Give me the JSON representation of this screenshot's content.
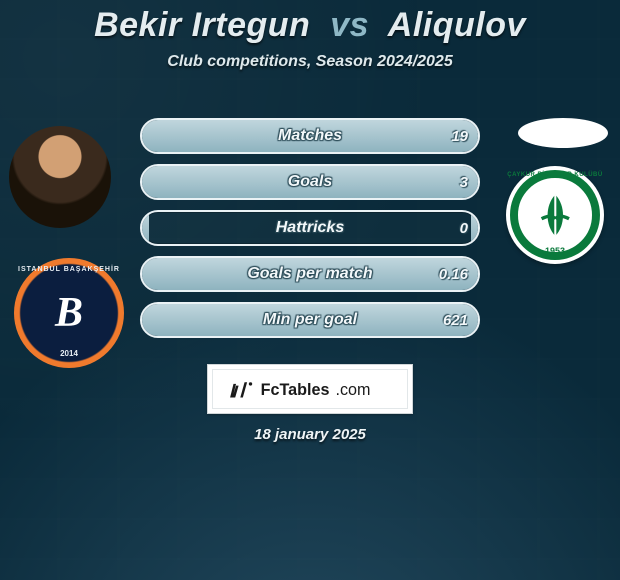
{
  "title": {
    "player1": "Bekir Irtegun",
    "vs": "vs",
    "player2": "Aliqulov"
  },
  "subtitle": "Club competitions, Season 2024/2025",
  "stats": [
    {
      "label": "Matches",
      "left_value": "",
      "right_value": "19",
      "left_fill_pct": 2,
      "right_fill_pct": 98
    },
    {
      "label": "Goals",
      "left_value": "",
      "right_value": "3",
      "left_fill_pct": 2,
      "right_fill_pct": 98
    },
    {
      "label": "Hattricks",
      "left_value": "",
      "right_value": "0",
      "left_fill_pct": 2,
      "right_fill_pct": 2
    },
    {
      "label": "Goals per match",
      "left_value": "",
      "right_value": "0.16",
      "left_fill_pct": 2,
      "right_fill_pct": 98
    },
    {
      "label": "Min per goal",
      "left_value": "",
      "right_value": "621",
      "left_fill_pct": 2,
      "right_fill_pct": 98
    }
  ],
  "left_club": {
    "name": "Istanbul Basaksehir",
    "letter": "B",
    "ring_text": "ISTANBUL BAŞAKŞEHİR",
    "year": "2014"
  },
  "right_club": {
    "name": "Caykur Rizespor",
    "arc_text": "ÇAYKUR RİZESPOR KULÜBÜ",
    "year": "1953"
  },
  "brand": "FcTables.com",
  "date": "18 january 2025",
  "colors": {
    "bg": "#0a2a3a",
    "pill_border": "#eaf2f5",
    "pill_fill_top": "#c0d6dd",
    "pill_fill_bottom": "#8eb3bf",
    "text": "#f3f8fa",
    "club_left_outer": "#0b1e3f",
    "club_left_accent": "#f07a2d",
    "club_right_green": "#0a7a3c"
  }
}
